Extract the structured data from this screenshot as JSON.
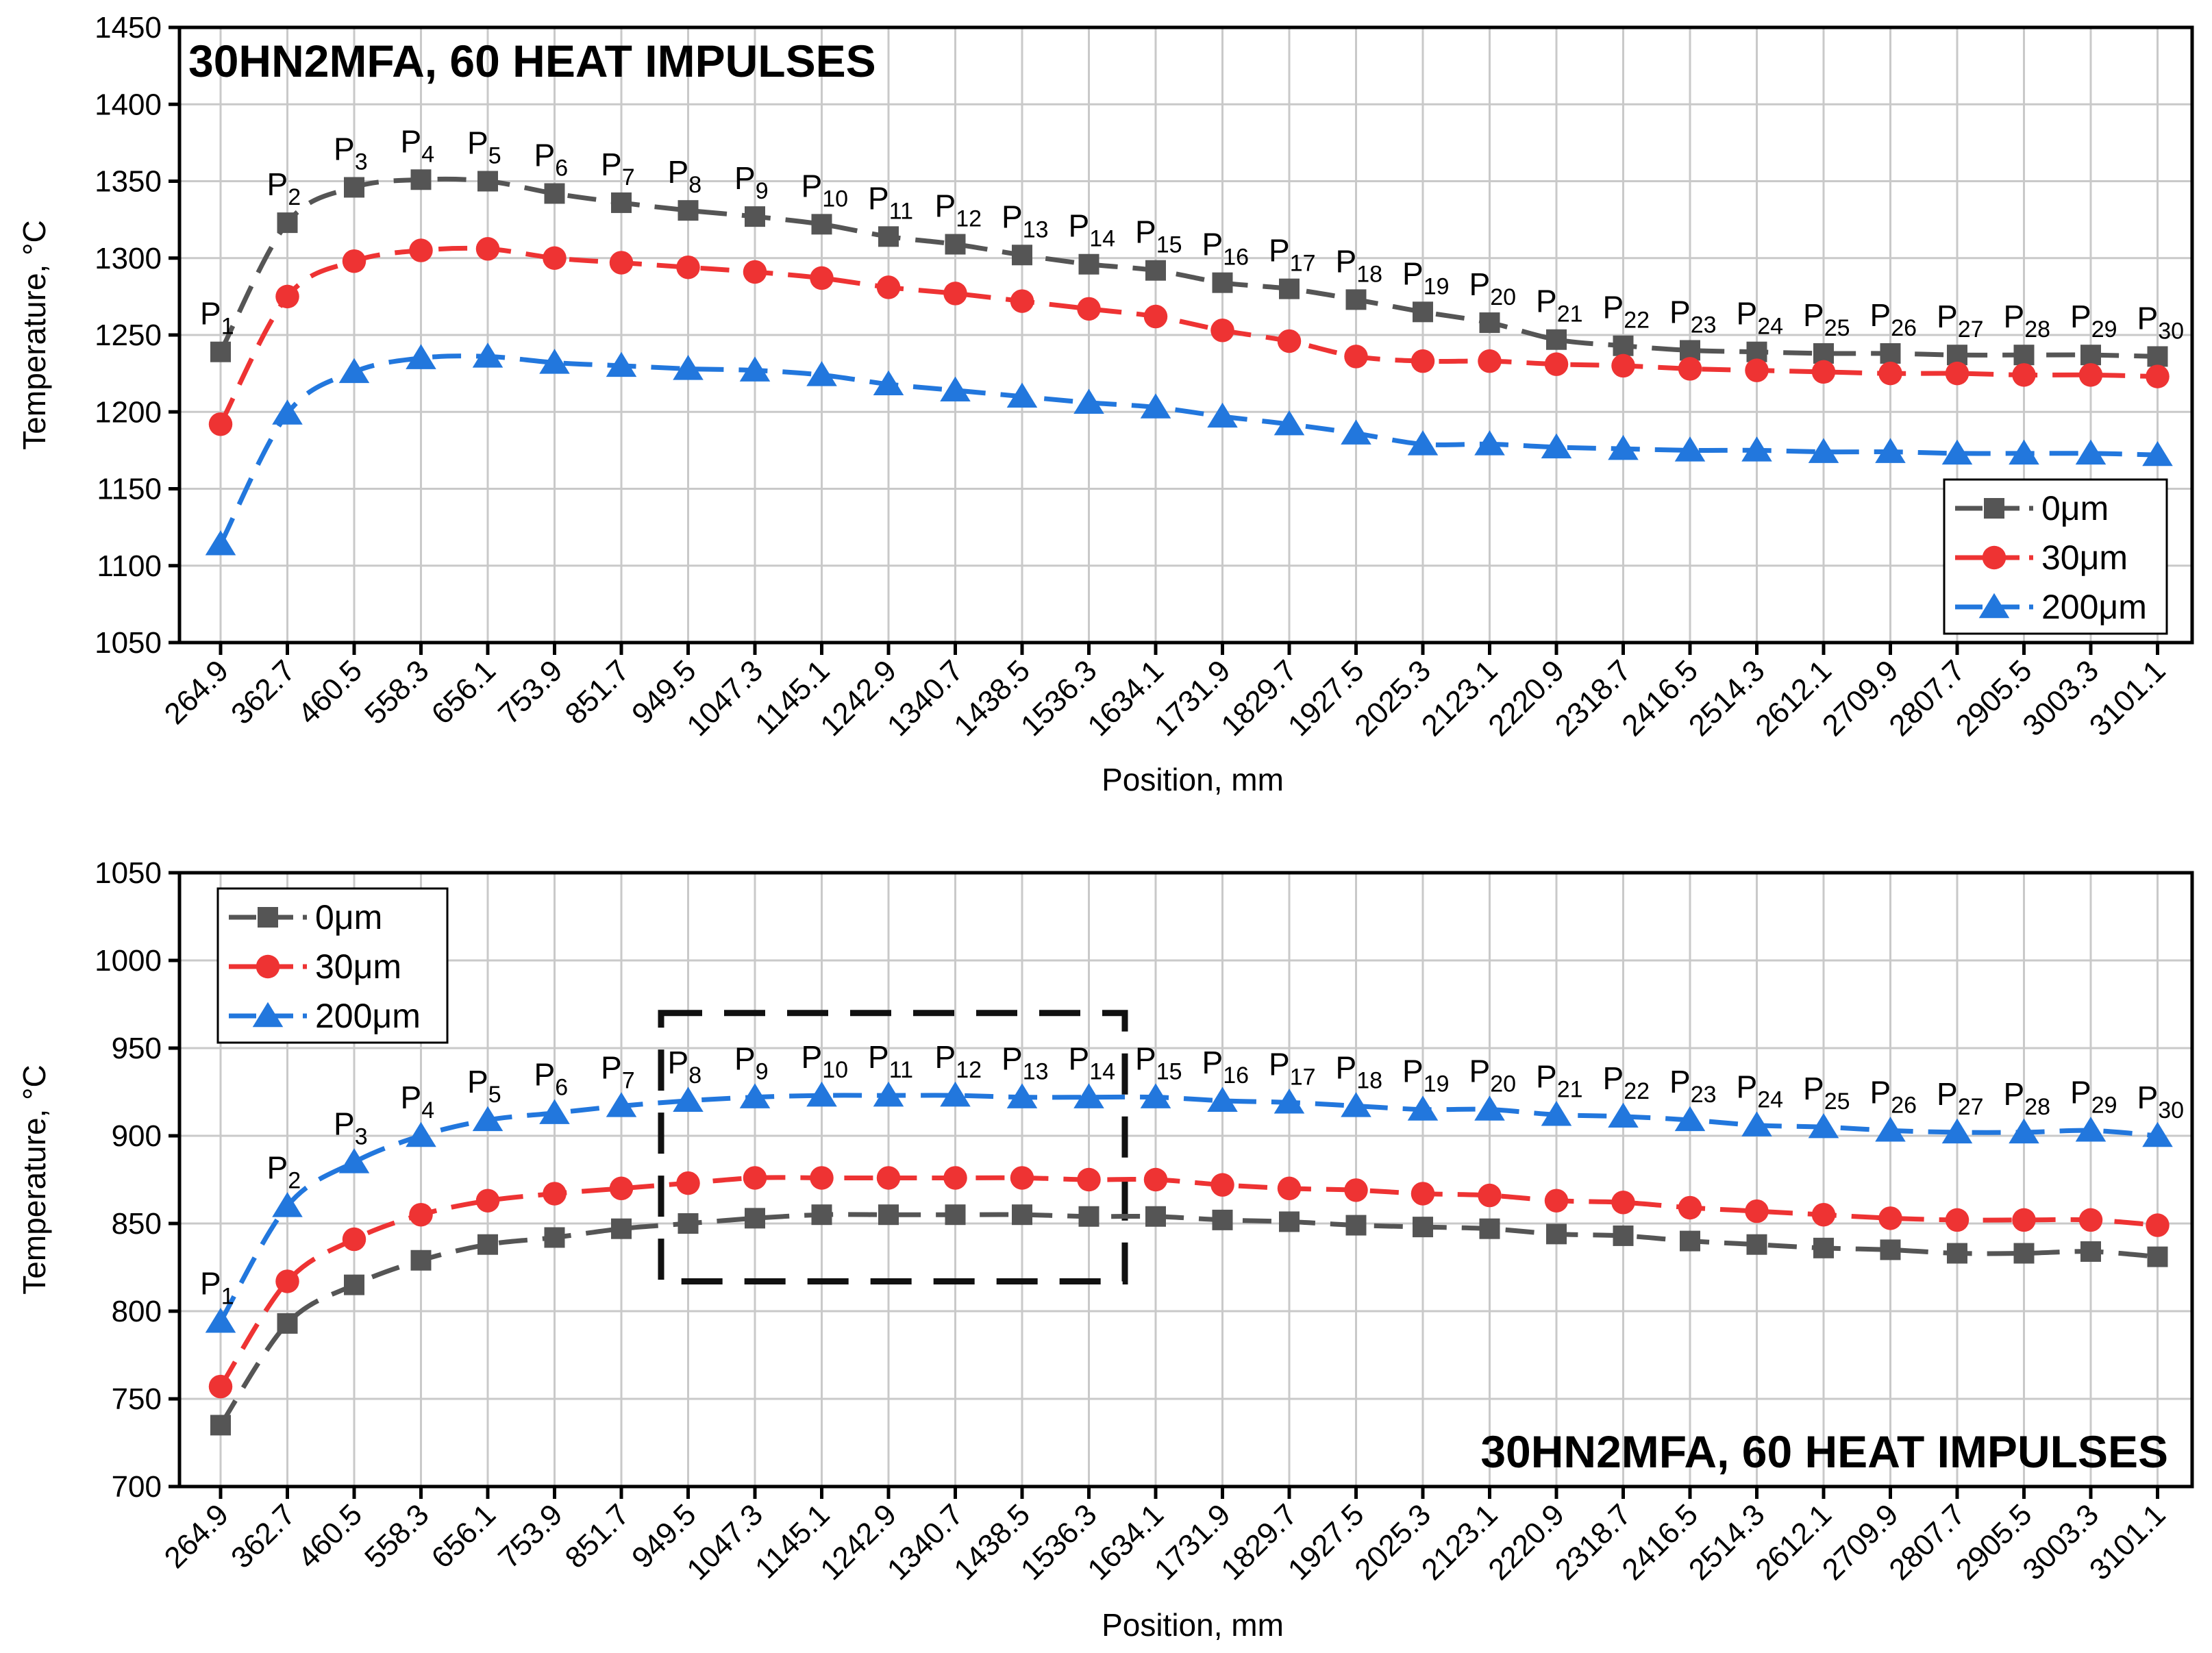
{
  "chart_data": [
    {
      "type": "line",
      "title": "30HN2MFA, 60 HEAT IMPULSES",
      "xlabel": "Position, mm",
      "ylabel": "Temperature, °C",
      "ylim": [
        1050,
        1450
      ],
      "yticks": [
        1050,
        1100,
        1150,
        1200,
        1250,
        1300,
        1350,
        1400,
        1450
      ],
      "grid": true,
      "legend_position": "bottom-right",
      "categories": [
        "264.9",
        "362.7",
        "460.5",
        "558.3",
        "656.1",
        "753.9",
        "851.7",
        "949.5",
        "1047.3",
        "1145.1",
        "1242.9",
        "1340.7",
        "1438.5",
        "1536.3",
        "1634.1",
        "1731.9",
        "1829.7",
        "1927.5",
        "2025.3",
        "2123.1",
        "2220.9",
        "2318.7",
        "2416.5",
        "2514.3",
        "2612.1",
        "2709.9",
        "2807.7",
        "2905.5",
        "3003.3",
        "3101.1"
      ],
      "point_labels": [
        "P",
        "P",
        "P",
        "P",
        "P",
        "P",
        "P",
        "P",
        "P",
        "P",
        "P",
        "P",
        "P",
        "P",
        "P",
        "P",
        "P",
        "P",
        "P",
        "P",
        "P",
        "P",
        "P",
        "P",
        "P",
        "P",
        "P",
        "P",
        "P",
        "P"
      ],
      "point_label_subs": [
        "1",
        "2",
        "3",
        "4",
        "5",
        "6",
        "7",
        "8",
        "9",
        "10",
        "11",
        "12",
        "13",
        "14",
        "15",
        "16",
        "17",
        "18",
        "19",
        "20",
        "21",
        "22",
        "23",
        "24",
        "25",
        "26",
        "27",
        "28",
        "29",
        "30"
      ],
      "series": [
        {
          "name": "0μm",
          "marker": "square",
          "color": "#555555",
          "values": [
            1239,
            1323,
            1346,
            1351,
            1350,
            1342,
            1336,
            1331,
            1327,
            1322,
            1314,
            1309,
            1302,
            1296,
            1292,
            1284,
            1280,
            1273,
            1265,
            1258,
            1247,
            1243,
            1240,
            1239,
            1238,
            1238,
            1237,
            1237,
            1237,
            1236
          ]
        },
        {
          "name": "30μm",
          "marker": "circle",
          "color": "#ee3333",
          "values": [
            1192,
            1275,
            1298,
            1305,
            1306,
            1300,
            1297,
            1294,
            1291,
            1287,
            1281,
            1277,
            1272,
            1267,
            1262,
            1253,
            1246,
            1236,
            1233,
            1233,
            1231,
            1230,
            1228,
            1227,
            1226,
            1225,
            1225,
            1224,
            1224,
            1223
          ]
        },
        {
          "name": "200μm",
          "marker": "triangle",
          "color": "#2277dd",
          "values": [
            1114,
            1199,
            1226,
            1235,
            1236,
            1232,
            1230,
            1228,
            1227,
            1224,
            1218,
            1214,
            1210,
            1206,
            1203,
            1197,
            1192,
            1186,
            1179,
            1179,
            1177,
            1176,
            1175,
            1175,
            1174,
            1174,
            1173,
            1173,
            1173,
            1172
          ]
        }
      ]
    },
    {
      "type": "line",
      "title": "30HN2MFA, 60 HEAT IMPULSES",
      "xlabel": "Position, mm",
      "ylabel": "Temperature, °C",
      "ylim": [
        700,
        1050
      ],
      "yticks": [
        700,
        750,
        800,
        850,
        900,
        950,
        1000,
        1050
      ],
      "grid": true,
      "legend_position": "top-left",
      "annotation": "dashed box around P8–P14",
      "highlight_box": {
        "x_from": "P8",
        "x_to": "P14",
        "y_from": 817,
        "y_to": 970
      },
      "categories": [
        "264.9",
        "362.7",
        "460.5",
        "558.3",
        "656.1",
        "753.9",
        "851.7",
        "949.5",
        "1047.3",
        "1145.1",
        "1242.9",
        "1340.7",
        "1438.5",
        "1536.3",
        "1634.1",
        "1731.9",
        "1829.7",
        "1927.5",
        "2025.3",
        "2123.1",
        "2220.9",
        "2318.7",
        "2416.5",
        "2514.3",
        "2612.1",
        "2709.9",
        "2807.7",
        "2905.5",
        "3003.3",
        "3101.1"
      ],
      "point_labels": [
        "P",
        "P",
        "P",
        "P",
        "P",
        "P",
        "P",
        "P",
        "P",
        "P",
        "P",
        "P",
        "P",
        "P",
        "P",
        "P",
        "P",
        "P",
        "P",
        "P",
        "P",
        "P",
        "P",
        "P",
        "P",
        "P",
        "P",
        "P",
        "P",
        "P"
      ],
      "point_label_subs": [
        "1",
        "2",
        "3",
        "4",
        "5",
        "6",
        "7",
        "8",
        "9",
        "10",
        "11",
        "12",
        "13",
        "14",
        "15",
        "16",
        "17",
        "18",
        "19",
        "20",
        "21",
        "22",
        "23",
        "24",
        "25",
        "26",
        "27",
        "28",
        "29",
        "30"
      ],
      "series": [
        {
          "name": "0μm",
          "marker": "square",
          "color": "#555555",
          "values": [
            735,
            793,
            815,
            829,
            838,
            842,
            847,
            850,
            853,
            855,
            855,
            855,
            855,
            854,
            854,
            852,
            851,
            849,
            848,
            847,
            844,
            843,
            840,
            838,
            836,
            835,
            833,
            833,
            834,
            831
          ]
        },
        {
          "name": "30μm",
          "marker": "circle",
          "color": "#ee3333",
          "values": [
            757,
            817,
            841,
            855,
            863,
            867,
            870,
            873,
            876,
            876,
            876,
            876,
            876,
            875,
            875,
            872,
            870,
            869,
            867,
            866,
            863,
            862,
            859,
            857,
            855,
            853,
            852,
            852,
            852,
            849
          ]
        },
        {
          "name": "200μm",
          "marker": "triangle",
          "color": "#2277dd",
          "values": [
            794,
            860,
            885,
            900,
            909,
            913,
            917,
            920,
            922,
            923,
            923,
            923,
            922,
            922,
            922,
            920,
            919,
            917,
            915,
            915,
            912,
            911,
            909,
            906,
            905,
            903,
            902,
            902,
            903,
            900
          ]
        }
      ]
    }
  ]
}
